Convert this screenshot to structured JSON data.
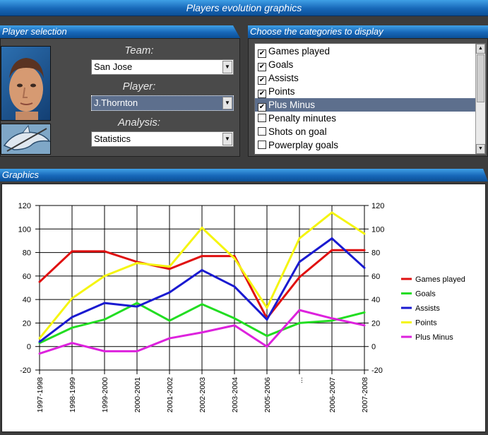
{
  "window": {
    "title": "Players evolution graphics"
  },
  "player_selection": {
    "tab_label": "Player selection",
    "team_label": "Team:",
    "team_value": "San Jose",
    "player_label": "Player:",
    "player_value": "J.Thornton",
    "analysis_label": "Analysis:",
    "analysis_value": "Statistics"
  },
  "categories": {
    "tab_label": "Choose the categories to display",
    "items": [
      {
        "label": "Games played",
        "checked": true
      },
      {
        "label": "Goals",
        "checked": true
      },
      {
        "label": "Assists",
        "checked": true
      },
      {
        "label": "Points",
        "checked": true
      },
      {
        "label": "Plus Minus",
        "checked": true,
        "highlighted": true
      },
      {
        "label": "Penalty minutes",
        "checked": false
      },
      {
        "label": "Shots on goal",
        "checked": false
      },
      {
        "label": "Powerplay goals",
        "checked": false
      }
    ]
  },
  "graphics": {
    "tab_label": "Graphics"
  },
  "chart_data": {
    "type": "line",
    "categories": [
      "1997-1998",
      "1998-1999",
      "1999-2000",
      "2000-2001",
      "2001-2002",
      "2002-2003",
      "2003-2004",
      "2005-2006",
      "...",
      "2006-2007",
      "2007-2008"
    ],
    "ylim": [
      -20,
      120
    ],
    "yticks": [
      -20,
      0,
      20,
      40,
      60,
      80,
      100,
      120
    ],
    "grid": true,
    "legend_position": "right",
    "series": [
      {
        "name": "Games played",
        "color": "#e01010",
        "values": [
          55,
          81,
          81,
          72,
          66,
          77,
          77,
          24,
          59,
          82,
          82
        ]
      },
      {
        "name": "Goals",
        "color": "#22dd22",
        "values": [
          3,
          16,
          23,
          37,
          22,
          36,
          24,
          9,
          20,
          22,
          29
        ]
      },
      {
        "name": "Assists",
        "color": "#1a1ad0",
        "values": [
          4,
          25,
          37,
          34,
          46,
          65,
          51,
          23,
          72,
          92,
          67
        ]
      },
      {
        "name": "Points",
        "color": "#f5f510",
        "values": [
          7,
          41,
          60,
          71,
          68,
          101,
          75,
          33,
          92,
          114,
          96
        ]
      },
      {
        "name": "Plus Minus",
        "color": "#dd22dd",
        "values": [
          -6,
          3,
          -4,
          -4,
          7,
          12,
          18,
          0,
          31,
          24,
          18
        ]
      }
    ]
  }
}
